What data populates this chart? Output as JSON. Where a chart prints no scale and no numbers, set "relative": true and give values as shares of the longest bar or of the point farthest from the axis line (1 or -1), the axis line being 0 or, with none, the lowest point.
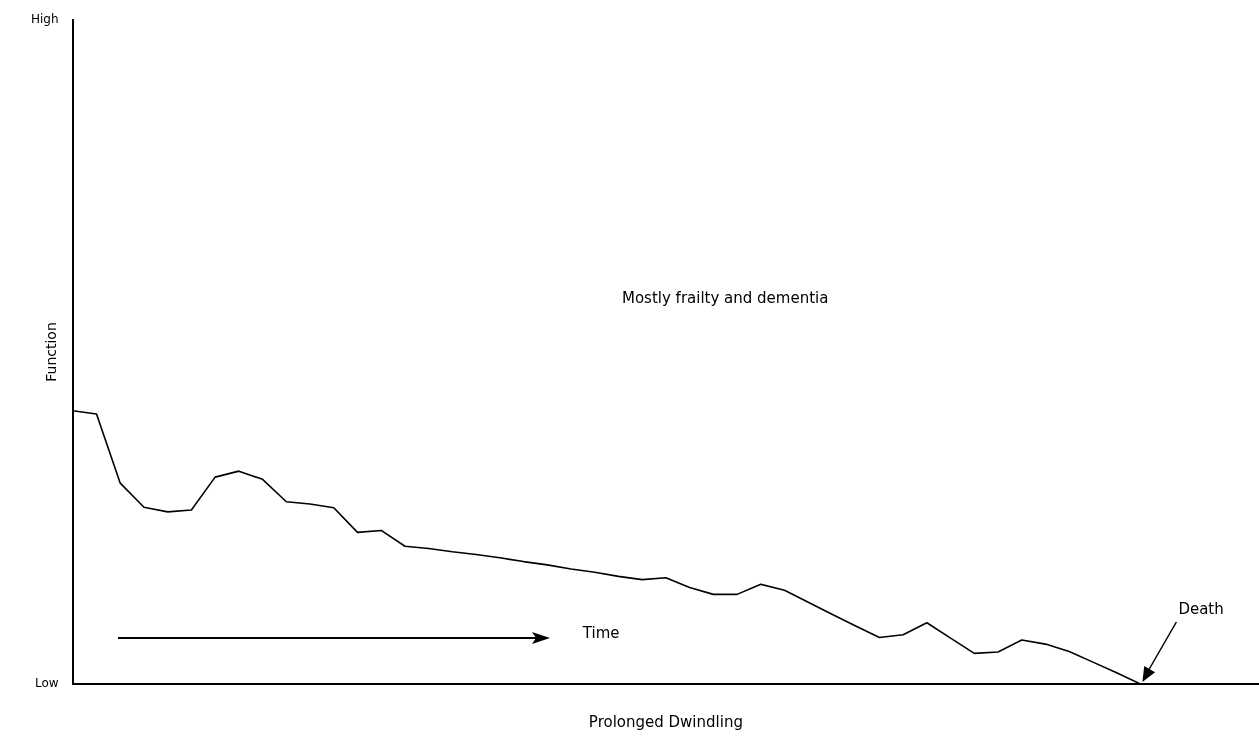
{
  "chart_data": {
    "type": "line",
    "xlabel": "Prolonged Dwindling",
    "ylabel": "Function",
    "categories": [
      null,
      null,
      null,
      null,
      null,
      null,
      null,
      null,
      null,
      null,
      null,
      null,
      null,
      null,
      null,
      null,
      null,
      null,
      null,
      null,
      null,
      null,
      null,
      null,
      null,
      null,
      null,
      null,
      null,
      null,
      null,
      null,
      null,
      null,
      null,
      null,
      null,
      null,
      null,
      null,
      null,
      null,
      null,
      null,
      null,
      null,
      null,
      null,
      null,
      null,
      null
    ],
    "series": [
      {
        "color": "#000000",
        "values": [
          1,
          0.988,
          0.735,
          0.647,
          0.63,
          0.637,
          0.757,
          0.779,
          0.749,
          0.667,
          0.659,
          0.645,
          0.555,
          0.562,
          0.504,
          0.496,
          0.484,
          0.474,
          0.462,
          0.448,
          0.436,
          0.421,
          0.409,
          0.394,
          0.382,
          0.389,
          0.353,
          0.328,
          0.328,
          0.365,
          0.343,
          0.299,
          0.255,
          0.212,
          0.17,
          0.18,
          0.224,
          0.168,
          0.112,
          0.117,
          0.161,
          0.146,
          0.119,
          0.08,
          0.041,
          0,
          null,
          null,
          null,
          null,
          null
        ]
      }
    ],
    "relative": true,
    "tick_labels": false,
    "grid": false,
    "legend": false,
    "marker": "none",
    "line_style": "solid",
    "annotations": [
      "High",
      "Low",
      "Mostly frailty and dementia",
      "Time",
      "Death"
    ]
  }
}
